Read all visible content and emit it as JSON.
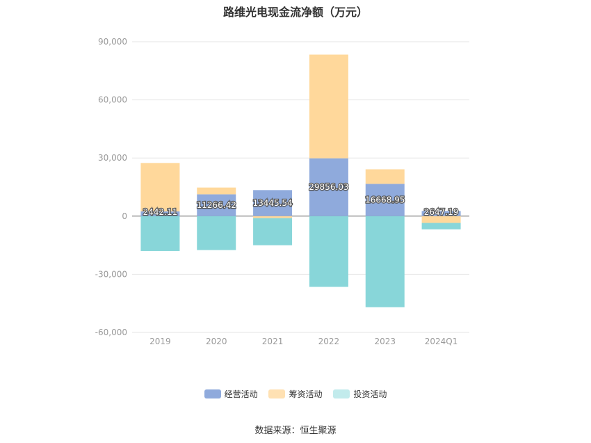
{
  "chart_data": {
    "type": "bar",
    "stacked": true,
    "title": "路维光电现金流净额（万元）",
    "categories": [
      "2019",
      "2020",
      "2021",
      "2022",
      "2023",
      "2024Q1"
    ],
    "ylim": [
      -60000,
      90000
    ],
    "yticks": [
      90000,
      60000,
      30000,
      0,
      -30000,
      -60000
    ],
    "ytick_labels": [
      "90,000",
      "60,000",
      "30,000",
      "0",
      "-30,000",
      "-60,000"
    ],
    "grid": true,
    "legend_position": "bottom",
    "series": [
      {
        "name": "经营活动",
        "color": "#8faadc",
        "values": [
          2442.11,
          11266.42,
          13445.54,
          29856.03,
          16668.95,
          2647.19
        ],
        "labels": [
          "2442.11",
          "11266.42",
          "13445.54",
          "29856.03",
          "16668.95",
          "2647.19"
        ]
      },
      {
        "name": "筹资活动",
        "color": "#ffd89b",
        "values": [
          25000,
          3500,
          -1000,
          53500,
          7500,
          -3500
        ]
      },
      {
        "name": "投资活动",
        "color": "#88d6d9",
        "values": [
          -18000,
          -17500,
          -14000,
          -36500,
          -47000,
          -3300
        ]
      }
    ]
  },
  "legend": {
    "items": [
      {
        "label": "经营活动",
        "color": "#8faadc"
      },
      {
        "label": "筹资活动",
        "color": "#ffe1b3"
      },
      {
        "label": "投资活动",
        "color": "#c2ebec"
      }
    ]
  },
  "source_text": "数据来源：恒生聚源"
}
